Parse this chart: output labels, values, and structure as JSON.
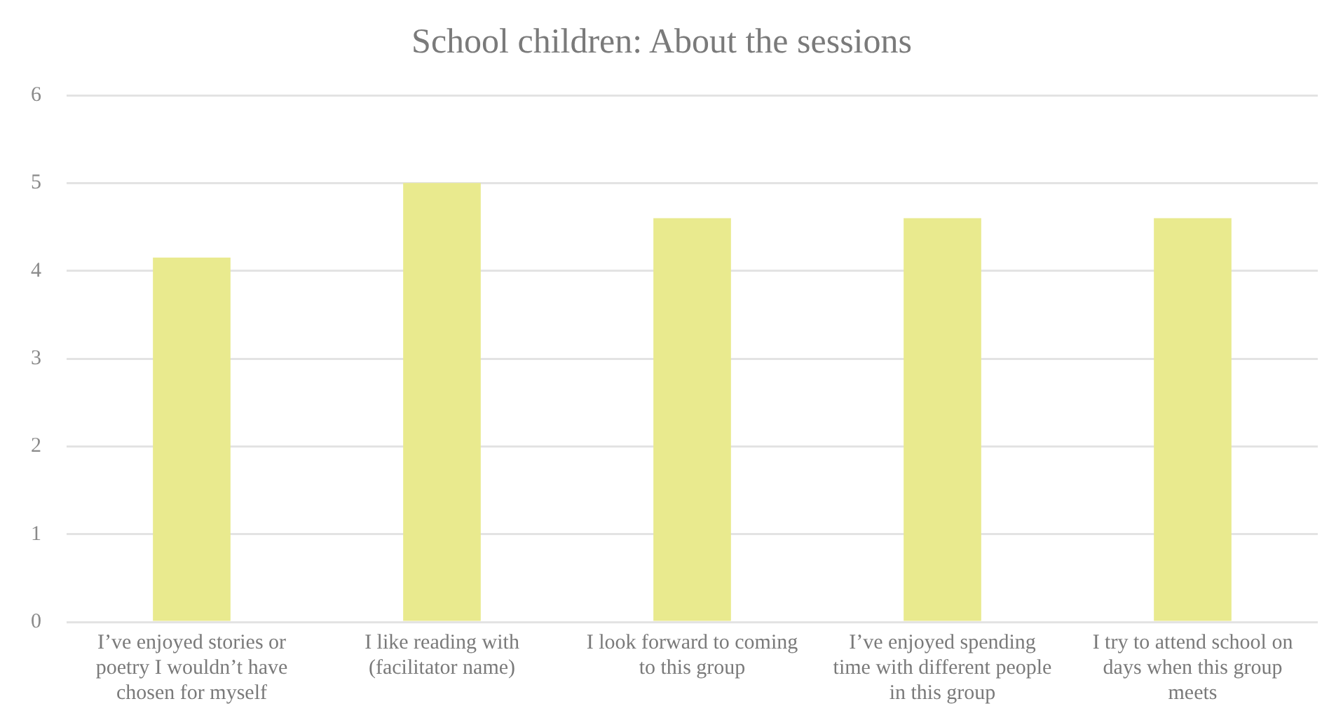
{
  "chart_data": {
    "type": "bar",
    "title": "School children: About the sessions",
    "categories": [
      "I’ve enjoyed stories or poetry I wouldn’t have chosen for myself",
      "I like reading with (facilitator name)",
      "I look forward to coming to this group",
      "I’ve enjoyed spending time with different people in this group",
      "I try to attend school on days when this group meets"
    ],
    "values": [
      4.15,
      5,
      4.6,
      4.6,
      4.6
    ],
    "color": "#e9ea8e",
    "ylim": [
      0,
      6
    ],
    "yticks": [
      0,
      1,
      2,
      3,
      4,
      5,
      6
    ],
    "grid": "y",
    "legend": false
  }
}
